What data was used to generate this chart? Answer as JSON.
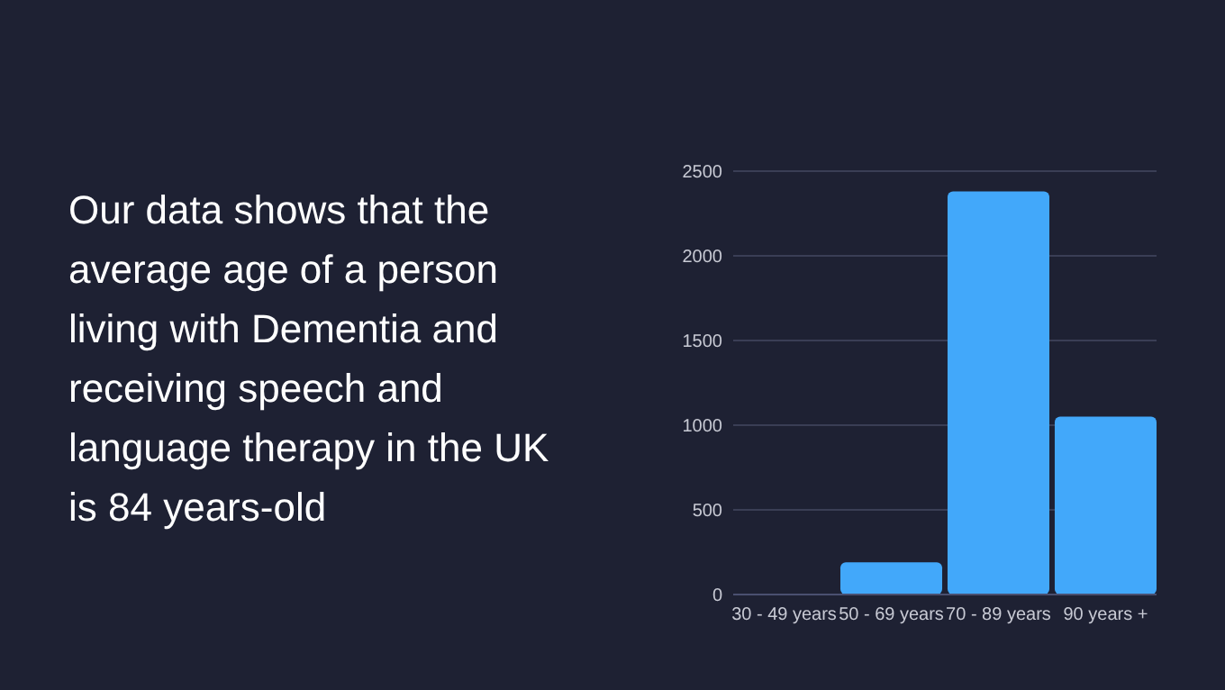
{
  "chart_data": {
    "type": "bar",
    "title": "Our data shows that the average age of a person living with Dementia and receiving speech and language therapy in the UK is 84 years-old",
    "categories": [
      "30 - 49 years",
      "50 - 69 years",
      "70 - 89 years",
      "90 years +"
    ],
    "values": [
      0,
      190,
      2380,
      1050
    ],
    "color": "#42a8fa",
    "ylim": [
      0,
      2500
    ],
    "yticks": [
      0,
      500,
      1000,
      1500,
      2000,
      2500
    ],
    "grid": "y"
  }
}
